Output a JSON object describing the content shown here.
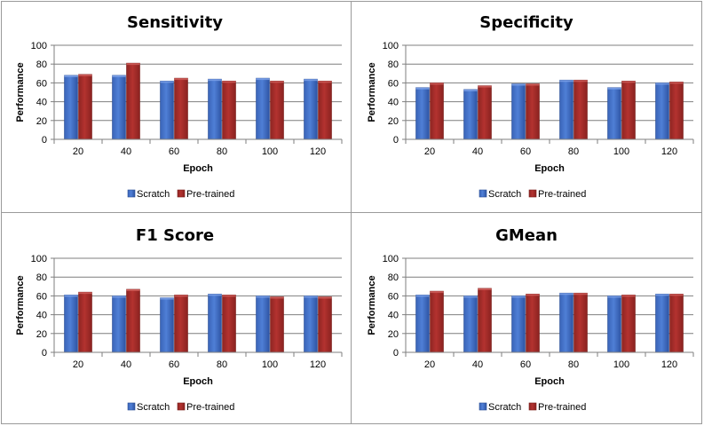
{
  "legend": {
    "series_a": "Scratch",
    "series_b": "Pre-trained"
  },
  "colors": {
    "scratch": "#4f7fd6",
    "pretrained": "#b3322f",
    "grid": "#7f7f7f"
  },
  "chart_data": [
    {
      "type": "bar",
      "title": "Sensitivity",
      "xlabel": "Epoch",
      "ylabel": "Performance",
      "ylim": [
        0,
        100
      ],
      "yticks": [
        "0",
        "20",
        "40",
        "60",
        "80",
        "100"
      ],
      "categories": [
        "20",
        "40",
        "60",
        "80",
        "100",
        "120"
      ],
      "series": [
        {
          "name": "Scratch",
          "values": [
            68,
            68,
            62,
            64,
            65,
            64
          ]
        },
        {
          "name": "Pre-trained",
          "values": [
            69,
            81,
            65,
            62,
            62,
            62
          ]
        }
      ],
      "legend_position": "bottom"
    },
    {
      "type": "bar",
      "title": "Specificity",
      "xlabel": "Epoch",
      "ylabel": "Performance",
      "ylim": [
        0,
        100
      ],
      "yticks": [
        "0",
        "20",
        "40",
        "60",
        "80",
        "100"
      ],
      "categories": [
        "20",
        "40",
        "60",
        "80",
        "100",
        "120"
      ],
      "series": [
        {
          "name": "Scratch",
          "values": [
            55,
            53,
            59,
            63,
            55,
            60
          ]
        },
        {
          "name": "Pre-trained",
          "values": [
            60,
            57,
            59,
            63,
            62,
            61
          ]
        }
      ],
      "legend_position": "bottom"
    },
    {
      "type": "bar",
      "title": "F1 Score",
      "xlabel": "Epoch",
      "ylabel": "Performance",
      "ylim": [
        0,
        100
      ],
      "yticks": [
        "0",
        "20",
        "40",
        "60",
        "80",
        "100"
      ],
      "categories": [
        "20",
        "40",
        "60",
        "80",
        "100",
        "120"
      ],
      "series": [
        {
          "name": "Scratch",
          "values": [
            61,
            60,
            58,
            62,
            60,
            60
          ]
        },
        {
          "name": "Pre-trained",
          "values": [
            64,
            67,
            61,
            61,
            59,
            59
          ]
        }
      ],
      "legend_position": "bottom"
    },
    {
      "type": "bar",
      "title": "GMean",
      "xlabel": "Epoch",
      "ylabel": "Performance",
      "ylim": [
        0,
        100
      ],
      "yticks": [
        "0",
        "20",
        "40",
        "60",
        "80",
        "100"
      ],
      "categories": [
        "20",
        "40",
        "60",
        "80",
        "100",
        "120"
      ],
      "series": [
        {
          "name": "Scratch",
          "values": [
            61,
            60,
            60,
            63,
            60,
            62
          ]
        },
        {
          "name": "Pre-trained",
          "values": [
            65,
            68,
            62,
            63,
            61,
            62
          ]
        }
      ],
      "legend_position": "bottom"
    }
  ]
}
